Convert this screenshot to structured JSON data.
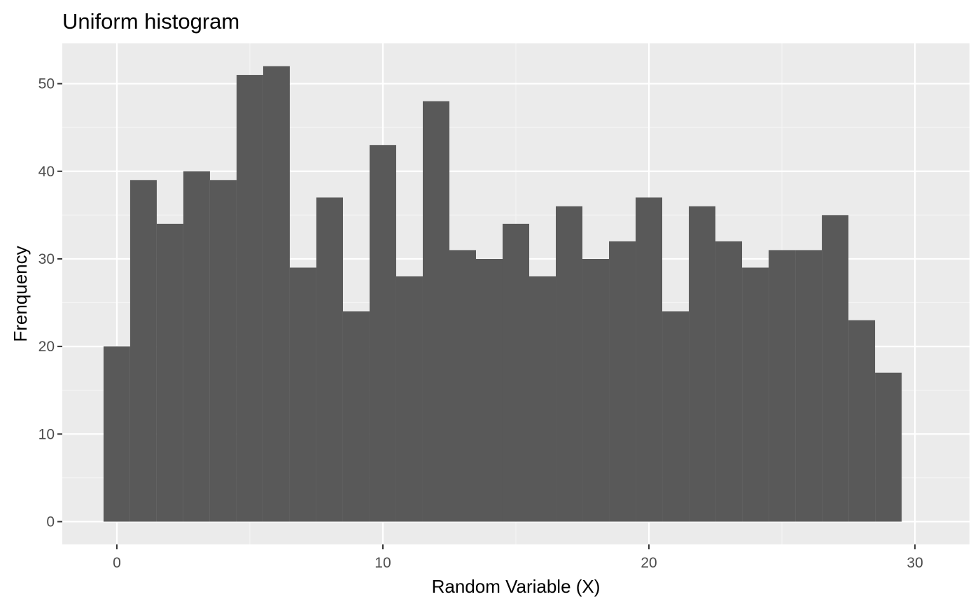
{
  "chart_data": {
    "type": "bar",
    "title": "Uniform histogram",
    "xlabel": "Random Variable (X)",
    "ylabel": "Frenquency",
    "bin_width": 1,
    "x": [
      0,
      1,
      2,
      3,
      4,
      5,
      6,
      7,
      8,
      9,
      10,
      11,
      12,
      13,
      14,
      15,
      16,
      17,
      18,
      19,
      20,
      21,
      22,
      23,
      24,
      25,
      26,
      27,
      28,
      29,
      30
    ],
    "values": [
      20,
      39,
      34,
      40,
      39,
      51,
      52,
      29,
      37,
      24,
      43,
      28,
      48,
      31,
      30,
      34,
      28,
      36,
      30,
      32,
      37,
      24,
      36,
      32,
      29,
      31,
      31,
      35,
      23,
      17,
      0
    ],
    "xlim": [
      -2.05,
      32.05
    ],
    "ylim": [
      -2.6,
      54.6
    ],
    "x_ticks": [
      0,
      10,
      20,
      30
    ],
    "x_tick_labels": [
      "0",
      "10",
      "20",
      "30"
    ],
    "y_ticks": [
      0,
      10,
      20,
      30,
      40,
      50
    ],
    "y_tick_labels": [
      "0",
      "10",
      "20",
      "30",
      "40",
      "50"
    ],
    "grid": true,
    "colors": {
      "panel_background": "#ebebeb",
      "grid_major": "#ffffff",
      "grid_minor": "#f5f5f5",
      "bar_fill": "#595959",
      "tick_text": "#4d4d4d",
      "tick_mark": "#333333"
    }
  }
}
